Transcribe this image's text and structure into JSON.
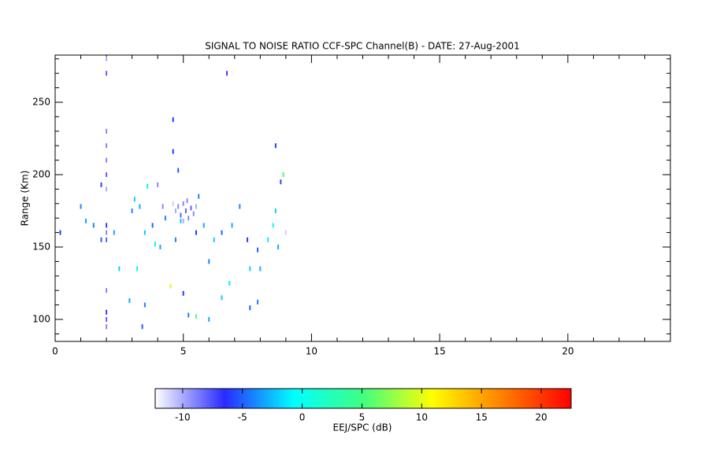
{
  "chart_data": {
    "type": "scatter",
    "title": "SIGNAL TO NOISE RATIO CCF-SPC Channel(B) - DATE: 27-Aug-2001",
    "y_label": "Range (Km)",
    "xlim": [
      0,
      24
    ],
    "xticks": [
      0,
      5,
      10,
      15,
      20
    ],
    "xminorticks": [
      1,
      2,
      3,
      4,
      6,
      7,
      8,
      9,
      11,
      12,
      13,
      14,
      16,
      17,
      18,
      19,
      21,
      22,
      23
    ],
    "ylim": [
      84.8,
      282.6
    ],
    "yticks": [
      100,
      150,
      200,
      250
    ],
    "yminorticks": [
      90,
      110,
      120,
      130,
      140,
      160,
      170,
      180,
      190,
      210,
      220,
      230,
      240,
      260,
      270,
      280
    ],
    "x": [
      2,
      2,
      2,
      2,
      2,
      2,
      2,
      2,
      2,
      2,
      2,
      2,
      2,
      2,
      4.8,
      4.9,
      5.0,
      5.1,
      5.2,
      5.3,
      5.4,
      4.7,
      5.0,
      5.5,
      4.6,
      5.15,
      0.2,
      1.0,
      1.2,
      1.8,
      1.8,
      3.0,
      3.3,
      3.6,
      3.5,
      3.8,
      3.9,
      4.1,
      4.2,
      4.3,
      4.6,
      4.8,
      4.9,
      4.7,
      5.5,
      5.8,
      6.0,
      6.2,
      6.5,
      6.7,
      6.9,
      7.2,
      7.5,
      7.6,
      7.9,
      8.0,
      8.3,
      8.5,
      8.6,
      8.7,
      8.6,
      8.8,
      8.9,
      3.5,
      3.2,
      4.5,
      5.0,
      5.2,
      5.5,
      6.0,
      6.5,
      6.8,
      7.6,
      7.9,
      2.5,
      2.9,
      3.4,
      1.5,
      2.3,
      4.0,
      5.6,
      3.1,
      4.6,
      9.0
    ],
    "y": [
      280,
      270,
      230,
      220,
      210,
      200,
      190,
      165,
      160,
      155,
      120,
      105,
      100,
      95,
      178,
      172,
      180,
      175,
      170,
      177,
      173,
      175,
      168,
      178,
      180,
      182,
      160,
      178,
      168,
      193,
      155,
      175,
      178,
      192,
      160,
      165,
      152,
      150,
      178,
      170,
      216,
      203,
      168,
      155,
      160,
      165,
      140,
      155,
      160,
      270,
      165,
      178,
      155,
      135,
      148,
      135,
      155,
      165,
      175,
      150,
      220,
      195,
      200,
      110,
      135,
      123,
      118,
      103,
      102,
      100,
      115,
      125,
      108,
      112,
      135,
      113,
      95,
      165,
      160,
      193,
      185,
      183,
      238,
      160
    ],
    "values": [
      -10,
      -8,
      -9,
      -9,
      -9,
      -8,
      -10,
      -7,
      -9,
      -8,
      -9,
      -7,
      -8,
      -9,
      -9,
      -8,
      -9,
      -8,
      -9,
      -8,
      -9,
      -10,
      -10,
      -10,
      -11,
      -9,
      -6,
      -4,
      -3,
      -7,
      -5,
      -4,
      -3,
      -1,
      -2,
      -5,
      -1,
      -3,
      -9,
      -4,
      -6,
      -5,
      -2,
      -4,
      -6,
      -3,
      -4,
      -2,
      -5,
      -7,
      -3,
      -4,
      -6,
      -2,
      -5,
      -3,
      -1,
      0,
      -2,
      -3,
      -6,
      -7,
      5,
      -4,
      -1,
      10,
      -6,
      -4,
      6,
      -3,
      -2,
      -1,
      -5,
      -4,
      -2,
      -3,
      -5,
      -4,
      -3,
      -9,
      -4,
      -2,
      -6,
      -11
    ],
    "colorbar": {
      "label": "EEJ/SPC (dB)",
      "clim": [
        -12.3,
        22.5
      ],
      "ticks": [
        -10,
        -5,
        0,
        5,
        10,
        15,
        20
      ],
      "colormap": [
        "#ffffff",
        "#2a2aff",
        "#00ffff",
        "#40ff80",
        "#ffff00",
        "#ff8000",
        "#ff0000"
      ]
    }
  }
}
